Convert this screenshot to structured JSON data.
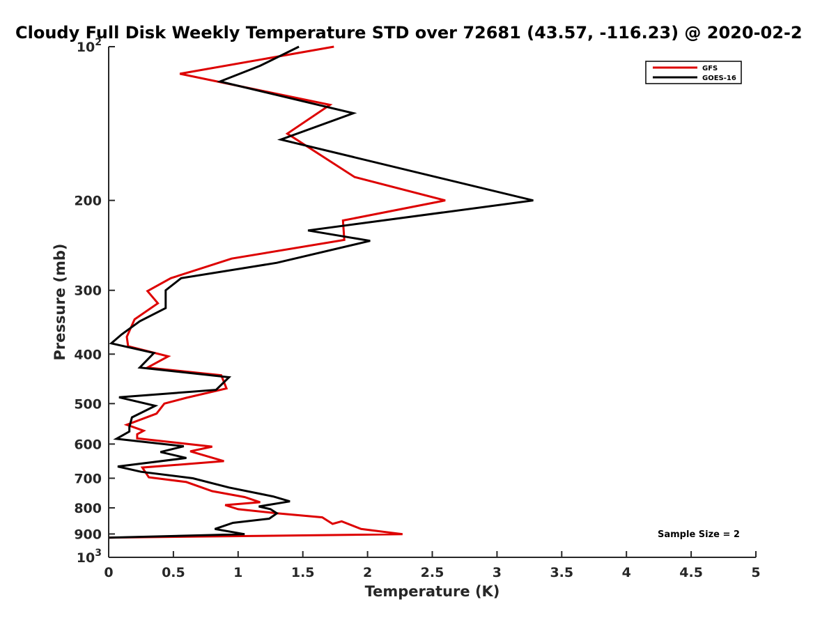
{
  "chart_data": {
    "type": "line",
    "title": "Cloudy Full Disk Weekly Temperature STD over 72681 (43.57, -116.23) @ 2020-02-2",
    "xlabel": "Temperature (K)",
    "ylabel": "Pressure (mb)",
    "xlim": [
      0,
      5
    ],
    "ylim": [
      100,
      1000
    ],
    "yscale": "log",
    "y_reversed": true,
    "x_ticks": [
      "0",
      "0.5",
      "1",
      "1.5",
      "2",
      "2.5",
      "3",
      "3.5",
      "4",
      "4.5",
      "5"
    ],
    "x_tick_values": [
      0,
      0.5,
      1,
      1.5,
      2,
      2.5,
      3,
      3.5,
      4,
      4.5,
      5
    ],
    "y_ticks": [
      {
        "value": 100,
        "base": "10",
        "exp": "2"
      },
      {
        "value": 200,
        "label": "200"
      },
      {
        "value": 300,
        "label": "300"
      },
      {
        "value": 400,
        "label": "400"
      },
      {
        "value": 500,
        "label": "500"
      },
      {
        "value": 600,
        "label": "600"
      },
      {
        "value": 700,
        "label": "700"
      },
      {
        "value": 800,
        "label": "800"
      },
      {
        "value": 900,
        "label": "900"
      },
      {
        "value": 1000,
        "base": "10",
        "exp": "3"
      }
    ],
    "legend_position": "top-right",
    "grid": false,
    "annotation": "Sample Size = 2",
    "series": [
      {
        "name": "GFS",
        "color": "#dd0000",
        "points": [
          [
            1.74,
            100
          ],
          [
            0.55,
            113
          ],
          [
            1.71,
            130
          ],
          [
            1.38,
            148
          ],
          [
            1.9,
            180
          ],
          [
            2.6,
            200
          ],
          [
            1.81,
            219
          ],
          [
            1.82,
            239
          ],
          [
            0.95,
            260
          ],
          [
            0.48,
            284
          ],
          [
            0.3,
            301
          ],
          [
            0.38,
            318
          ],
          [
            0.2,
            342
          ],
          [
            0.14,
            370
          ],
          [
            0.15,
            386
          ],
          [
            0.46,
            404
          ],
          [
            0.3,
            425
          ],
          [
            0.87,
            440
          ],
          [
            0.91,
            467
          ],
          [
            0.6,
            487
          ],
          [
            0.43,
            500
          ],
          [
            0.37,
            523
          ],
          [
            0.14,
            550
          ],
          [
            0.27,
            565
          ],
          [
            0.22,
            574
          ],
          [
            0.22,
            585
          ],
          [
            0.8,
            607
          ],
          [
            0.63,
            620
          ],
          [
            0.89,
            648
          ],
          [
            0.26,
            667
          ],
          [
            0.31,
            697
          ],
          [
            0.6,
            712
          ],
          [
            0.8,
            742
          ],
          [
            1.05,
            762
          ],
          [
            1.17,
            780
          ],
          [
            0.9,
            790
          ],
          [
            1.0,
            805
          ],
          [
            1.3,
            820
          ],
          [
            1.65,
            835
          ],
          [
            1.73,
            860
          ],
          [
            1.8,
            850
          ],
          [
            1.95,
            880
          ],
          [
            2.27,
            901
          ],
          [
            0.0,
            915
          ]
        ]
      },
      {
        "name": "GOES-16",
        "color": "#000000",
        "points": [
          [
            1.47,
            100
          ],
          [
            1.17,
            109
          ],
          [
            0.86,
            117
          ],
          [
            1.89,
            135
          ],
          [
            1.33,
            152
          ],
          [
            3.28,
            200
          ],
          [
            1.54,
            229
          ],
          [
            2.02,
            240
          ],
          [
            1.3,
            265
          ],
          [
            0.56,
            284
          ],
          [
            0.44,
            300
          ],
          [
            0.44,
            325
          ],
          [
            0.24,
            345
          ],
          [
            0.1,
            366
          ],
          [
            0.02,
            381
          ],
          [
            0.35,
            398
          ],
          [
            0.24,
            425
          ],
          [
            0.93,
            444
          ],
          [
            0.83,
            470
          ],
          [
            0.08,
            486
          ],
          [
            0.36,
            505
          ],
          [
            0.18,
            532
          ],
          [
            0.16,
            556
          ],
          [
            0.16,
            567
          ],
          [
            0.06,
            586
          ],
          [
            0.58,
            606
          ],
          [
            0.4,
            622
          ],
          [
            0.6,
            639
          ],
          [
            0.07,
            664
          ],
          [
            0.25,
            680
          ],
          [
            0.65,
            700
          ],
          [
            0.93,
            730
          ],
          [
            1.27,
            760
          ],
          [
            1.4,
            777
          ],
          [
            1.16,
            795
          ],
          [
            1.25,
            805
          ],
          [
            1.3,
            820
          ],
          [
            1.24,
            840
          ],
          [
            0.96,
            856
          ],
          [
            0.82,
            880
          ],
          [
            1.05,
            901
          ],
          [
            0.0,
            915
          ]
        ]
      }
    ]
  }
}
